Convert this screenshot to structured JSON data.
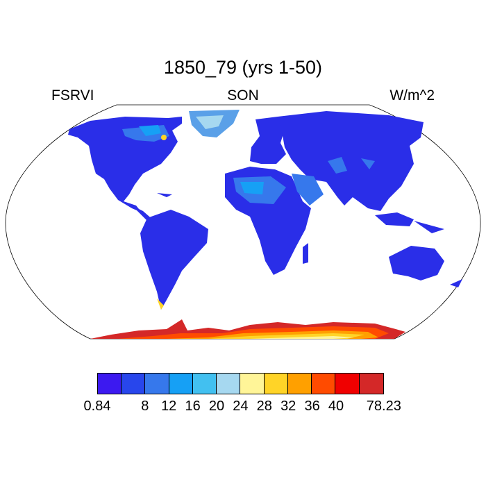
{
  "title": "1850_79 (yrs 1-50)",
  "left_label": "FSRVI",
  "center_label": "SON",
  "right_label": "W/m^2",
  "colorbar": {
    "colors": [
      "#3c19f0",
      "#2846ec",
      "#3678ec",
      "#16a0f5",
      "#42c0f0",
      "#a6d8f0",
      "#fff598",
      "#ffd427",
      "#ffa000",
      "#ff4b00",
      "#f00000",
      "#d42828"
    ],
    "tick_labels": [
      "0.84",
      "8",
      "12",
      "16",
      "20",
      "24",
      "28",
      "32",
      "36",
      "40",
      "78.23"
    ]
  },
  "map": {
    "projection": "Robinson",
    "land_color_dominant": "#2a2ee8",
    "ocean_color": "#ffffff"
  }
}
